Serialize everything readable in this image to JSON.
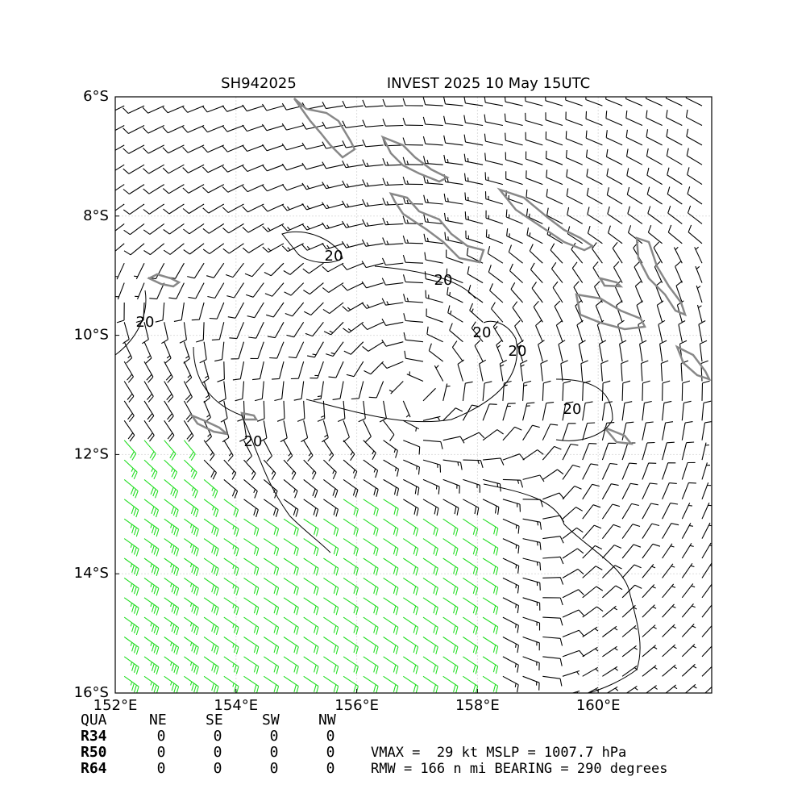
{
  "chart_data": {
    "type": "wind-barb-map",
    "title_left": "SH942025",
    "title_right": "INVEST 2025 10 May 15UTC",
    "xlim": [
      152,
      161.88
    ],
    "ylim": [
      -6,
      -16
    ],
    "xticks": [
      {
        "value": 152,
        "label": "152°E"
      },
      {
        "value": 154,
        "label": "154°E"
      },
      {
        "value": 156,
        "label": "156°E"
      },
      {
        "value": 158,
        "label": "158°E"
      },
      {
        "value": 160,
        "label": "160°E"
      }
    ],
    "yticks": [
      {
        "value": -6,
        "label": "6°S"
      },
      {
        "value": -8,
        "label": "8°S"
      },
      {
        "value": -10,
        "label": "10°S"
      },
      {
        "value": -12,
        "label": "12°S"
      },
      {
        "value": -14,
        "label": "14°S"
      },
      {
        "value": -16,
        "label": "16°S"
      }
    ],
    "grid": true,
    "contour_level": 20,
    "radii_table": {
      "header": [
        "QUA",
        "NE",
        "SE",
        "SW",
        "NW"
      ],
      "rows": [
        [
          "R34",
          0,
          0,
          0,
          0
        ],
        [
          "R50",
          0,
          0,
          0,
          0
        ],
        [
          "R64",
          0,
          0,
          0,
          0
        ]
      ]
    },
    "stats": [
      "VMAX =  29 kt MSLP = 1007.7 hPa",
      "RMW = 166 n mi BEARING = 290 degrees"
    ]
  }
}
